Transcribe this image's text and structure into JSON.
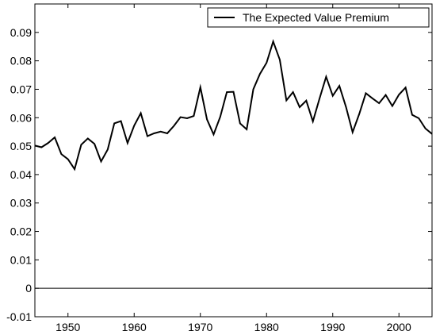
{
  "chart_data": {
    "type": "line",
    "title": "",
    "xlabel": "",
    "ylabel": "",
    "xlim": [
      1945,
      2005
    ],
    "ylim": [
      -0.01,
      0.1
    ],
    "grid": false,
    "legend_position": "top-right",
    "x_ticks": [
      1950,
      1960,
      1970,
      1980,
      1990,
      2000
    ],
    "y_ticks": [
      -0.01,
      0,
      0.01,
      0.02,
      0.03,
      0.04,
      0.05,
      0.06,
      0.07,
      0.08,
      0.09
    ],
    "y_tick_labels": [
      "-0.01",
      "0",
      "0.01",
      "0.02",
      "0.03",
      "0.04",
      "0.05",
      "0.06",
      "0.07",
      "0.08",
      "0.09"
    ],
    "reference_line_y": 0,
    "series": [
      {
        "name": "The Expected Value Premium",
        "color": "#000000",
        "x": [
          1945,
          1946,
          1947,
          1948,
          1949,
          1950,
          1951,
          1952,
          1953,
          1954,
          1955,
          1956,
          1957,
          1958,
          1959,
          1960,
          1961,
          1962,
          1963,
          1964,
          1965,
          1966,
          1967,
          1968,
          1969,
          1970,
          1971,
          1972,
          1973,
          1974,
          1975,
          1976,
          1977,
          1978,
          1979,
          1980,
          1981,
          1982,
          1983,
          1984,
          1985,
          1986,
          1987,
          1988,
          1989,
          1990,
          1991,
          1992,
          1993,
          1994,
          1995,
          1996,
          1997,
          1998,
          1999,
          2000,
          2001,
          2002,
          2003,
          2004,
          2005
        ],
        "values": [
          0.0502,
          0.0496,
          0.0511,
          0.0531,
          0.0472,
          0.0454,
          0.0419,
          0.0505,
          0.0527,
          0.0508,
          0.0446,
          0.0488,
          0.058,
          0.0588,
          0.0511,
          0.0572,
          0.0616,
          0.0535,
          0.0545,
          0.0551,
          0.0545,
          0.0571,
          0.0602,
          0.0598,
          0.0606,
          0.0707,
          0.0594,
          0.0541,
          0.0603,
          0.069,
          0.0691,
          0.058,
          0.0559,
          0.07,
          0.0754,
          0.0793,
          0.0868,
          0.0804,
          0.0661,
          0.069,
          0.0637,
          0.066,
          0.0587,
          0.0667,
          0.0744,
          0.0677,
          0.0712,
          0.0638,
          0.0549,
          0.0613,
          0.0686,
          0.0668,
          0.0651,
          0.068,
          0.0641,
          0.0681,
          0.0706,
          0.061,
          0.0598,
          0.0562,
          0.0543
        ]
      }
    ]
  }
}
